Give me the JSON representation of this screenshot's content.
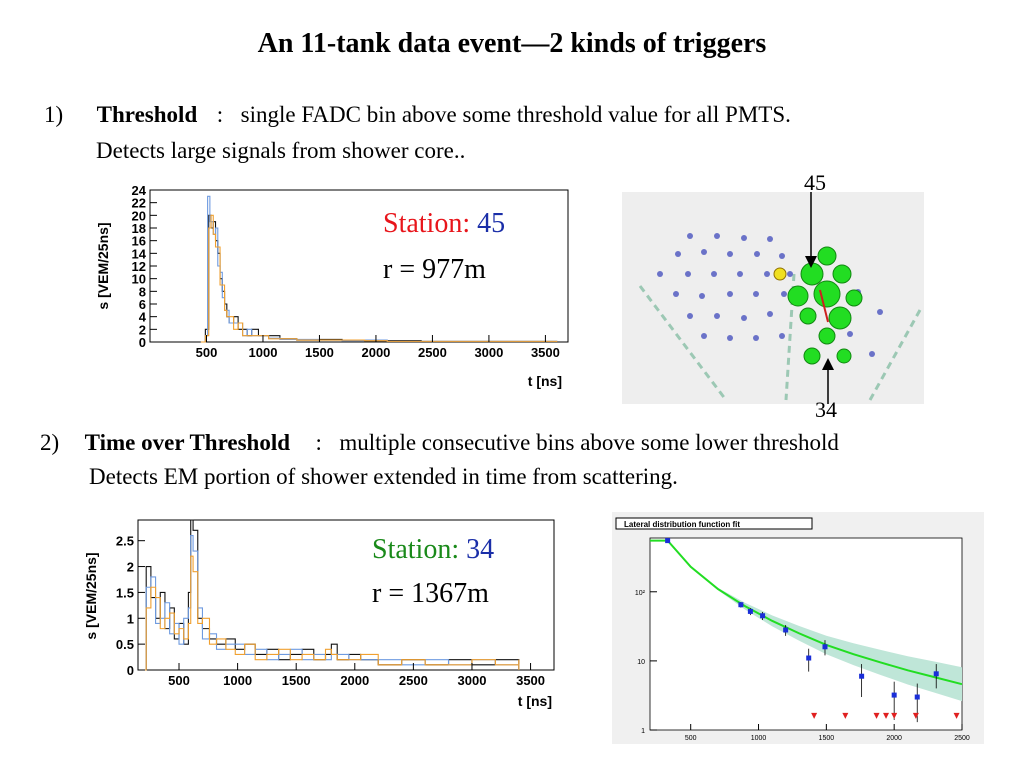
{
  "slide": {
    "title": "An 11-tank data event—2 kinds of triggers",
    "item1": {
      "number": "1)",
      "term": "Threshold",
      "sep": ":",
      "text": "single FADC bin above some threshold value for all PMTS.",
      "text2": "Detects large signals from shower core.."
    },
    "item2": {
      "number": "2)",
      "term": "Time over Threshold",
      "sep": ":",
      "text": "multiple consecutive bins above some lower threshold",
      "text2": "Detects EM portion of shower extended in time from scattering."
    },
    "station_45": {
      "station_word": "Station:",
      "station_num": "45",
      "distance": "r = 977m"
    },
    "station_34": {
      "station_word": "Station:",
      "station_num": "34",
      "distance": "r = 1367m"
    },
    "map_label_top": "45",
    "map_label_bottom": "34"
  },
  "colors": {
    "station45_word": "#e8151b",
    "station34_word": "#1a8a1a",
    "station_num": "#1a2ea8",
    "trace_black": "#111111",
    "trace_blue": "#6f9be0",
    "trace_orange": "#f0a030",
    "map_bg": "#eeeeee",
    "map_green": "#22dd22",
    "map_dot": "#6a72c8",
    "map_dashed": "#9cc8b4",
    "ldf_curve": "#22dd22",
    "ldf_band": "#bfe6d8",
    "ldf_point": "#1a2ed8",
    "ldf_triangle": "#e02020"
  },
  "chart_data": [
    {
      "type": "line",
      "ylabel": "s [VEM/25ns]",
      "xlabel": "t [ns]",
      "xlim": [
        0,
        3700
      ],
      "ylim": [
        0,
        24
      ],
      "xticks": [
        "500",
        "1000",
        "1500",
        "2000",
        "2500",
        "3000",
        "3500"
      ],
      "xtick_values": [
        500,
        1000,
        1500,
        2000,
        2500,
        3000,
        3500
      ],
      "yticks": [
        "0",
        "2",
        "4",
        "6",
        "8",
        "10",
        "12",
        "14",
        "16",
        "18",
        "20",
        "22",
        "24"
      ],
      "ytick_values": [
        0,
        2,
        4,
        6,
        8,
        10,
        12,
        14,
        16,
        18,
        20,
        22,
        24
      ],
      "series": [
        {
          "color": "#111111",
          "x": [
            450,
            490,
            520,
            540,
            560,
            580,
            600,
            620,
            640,
            660,
            680,
            700,
            740,
            780,
            820,
            860,
            900,
            960,
            1050,
            1150,
            1300,
            1500,
            1700,
            1900,
            2100,
            2400,
            2700,
            3000,
            3300,
            3600
          ],
          "y": [
            0,
            2,
            20,
            18,
            19,
            16,
            14,
            10,
            8,
            6,
            4,
            3,
            4,
            2,
            2,
            1,
            2,
            1,
            1,
            0.5,
            0.3,
            0.4,
            0.3,
            0.2,
            0.2,
            0.1,
            0.1,
            0.1,
            0.1,
            0
          ]
        },
        {
          "color": "#6f9be0",
          "x": [
            450,
            490,
            510,
            530,
            560,
            580,
            600,
            620,
            640,
            660,
            680,
            700,
            740,
            780,
            820,
            860,
            900,
            960,
            1050,
            1150,
            1300,
            1500,
            1700,
            1900,
            2100,
            2400,
            2700,
            3000,
            3300,
            3600
          ],
          "y": [
            0,
            1,
            23,
            19,
            17,
            18,
            12,
            11,
            7,
            5,
            5,
            3,
            3,
            3,
            1,
            2,
            1,
            1,
            0.6,
            0.4,
            0.4,
            0.3,
            0.2,
            0.3,
            0.1,
            0.1,
            0.1,
            0.1,
            0.1,
            0
          ]
        },
        {
          "color": "#f0a030",
          "x": [
            450,
            490,
            520,
            540,
            560,
            580,
            600,
            620,
            640,
            660,
            680,
            700,
            740,
            780,
            820,
            860,
            900,
            960,
            1050,
            1150,
            1300,
            1500,
            1700,
            1900,
            2100,
            2400,
            2700,
            3000,
            3300,
            3600
          ],
          "y": [
            0,
            1,
            18,
            20,
            17,
            15,
            15,
            9,
            9,
            5,
            4,
            4,
            2,
            3,
            1,
            1,
            1,
            1,
            0.5,
            0.5,
            0.3,
            0.3,
            0.3,
            0.2,
            0.1,
            0.1,
            0.1,
            0.1,
            0.1,
            0
          ]
        }
      ]
    },
    {
      "type": "line",
      "ylabel": "s [VEM/25ns]",
      "xlabel": "t [ns]",
      "xlim": [
        150,
        3700
      ],
      "ylim": [
        0,
        2.9
      ],
      "xticks": [
        "500",
        "1000",
        "1500",
        "2000",
        "2500",
        "3000",
        "3500"
      ],
      "xtick_values": [
        500,
        1000,
        1500,
        2000,
        2500,
        3000,
        3500
      ],
      "yticks": [
        "0",
        "0.5",
        "1",
        "1.5",
        "2",
        "2.5"
      ],
      "ytick_values": [
        0,
        0.5,
        1,
        1.5,
        2,
        2.5
      ],
      "series": [
        {
          "color": "#111111",
          "x": [
            180,
            220,
            260,
            300,
            340,
            380,
            420,
            460,
            500,
            540,
            580,
            600,
            620,
            660,
            700,
            760,
            820,
            900,
            980,
            1060,
            1150,
            1250,
            1350,
            1450,
            1550,
            1650,
            1750,
            1800,
            1850,
            1950,
            2050,
            2200,
            2400,
            2600,
            2800,
            3000,
            3200,
            3400
          ],
          "y": [
            0,
            2.0,
            1.4,
            1.0,
            1.5,
            0.8,
            1.2,
            0.6,
            0.9,
            0.5,
            1.5,
            2.9,
            2.7,
            1.0,
            0.8,
            0.6,
            0.5,
            0.6,
            0.4,
            0.5,
            0.3,
            0.4,
            0.2,
            0.3,
            0.4,
            0.2,
            0.3,
            0.5,
            0.2,
            0.3,
            0.2,
            0.1,
            0.2,
            0.1,
            0.2,
            0.1,
            0.2,
            0.1
          ]
        },
        {
          "color": "#6f9be0",
          "x": [
            180,
            220,
            260,
            300,
            340,
            380,
            420,
            460,
            500,
            540,
            580,
            600,
            620,
            660,
            700,
            760,
            820,
            900,
            980,
            1060,
            1150,
            1250,
            1350,
            1450,
            1550,
            1650,
            1750,
            1800,
            1850,
            1950,
            2050,
            2200,
            2400,
            2600,
            2800,
            3000,
            3200,
            3400
          ],
          "y": [
            0,
            1.6,
            1.8,
            0.9,
            1.0,
            1.3,
            0.7,
            0.9,
            0.5,
            1.0,
            1.2,
            2.6,
            2.3,
            1.2,
            0.6,
            0.7,
            0.4,
            0.5,
            0.5,
            0.3,
            0.4,
            0.2,
            0.3,
            0.4,
            0.2,
            0.3,
            0.2,
            0.3,
            0.3,
            0.2,
            0.2,
            0.2,
            0.1,
            0.2,
            0.1,
            0.2,
            0.1,
            0.1
          ]
        },
        {
          "color": "#f0a030",
          "x": [
            180,
            220,
            260,
            300,
            340,
            380,
            420,
            460,
            500,
            540,
            580,
            600,
            620,
            660,
            700,
            760,
            820,
            900,
            980,
            1060,
            1150,
            1250,
            1350,
            1450,
            1550,
            1650,
            1750,
            1800,
            1850,
            1950,
            2050,
            2200,
            2400,
            2600,
            2800,
            3000,
            3200,
            3400
          ],
          "y": [
            0,
            1.2,
            1.6,
            1.4,
            0.8,
            1.0,
            1.1,
            0.7,
            0.8,
            0.6,
            0.9,
            2.2,
            1.9,
            0.9,
            1.0,
            0.5,
            0.6,
            0.4,
            0.3,
            0.5,
            0.2,
            0.3,
            0.4,
            0.2,
            0.3,
            0.2,
            0.4,
            0.3,
            0.2,
            0.2,
            0.3,
            0.1,
            0.2,
            0.1,
            0.1,
            0.2,
            0.1,
            0.2
          ]
        }
      ]
    },
    {
      "type": "scatter",
      "title": "Lateral distribution function fit",
      "xlim": [
        200,
        2500
      ],
      "ylim": [
        1,
        600
      ],
      "ylog": true,
      "xticks": [
        "500",
        "1000",
        "1500",
        "2000",
        "2500"
      ],
      "xtick_values": [
        500,
        1000,
        1500,
        2000,
        2500
      ],
      "yticks": [
        "1",
        "10",
        "10²"
      ],
      "ytick_values": [
        1,
        10,
        100
      ],
      "points": [
        {
          "x": 330,
          "y": 550,
          "err": 0
        },
        {
          "x": 870,
          "y": 65,
          "err": 6
        },
        {
          "x": 940,
          "y": 52,
          "err": 6
        },
        {
          "x": 1030,
          "y": 45,
          "err": 6
        },
        {
          "x": 1200,
          "y": 28,
          "err": 5
        },
        {
          "x": 1370,
          "y": 11,
          "err": 4
        },
        {
          "x": 1490,
          "y": 16,
          "err": 4
        },
        {
          "x": 1760,
          "y": 6,
          "err": 3
        },
        {
          "x": 2000,
          "y": 3.2,
          "err": 1.8
        },
        {
          "x": 2170,
          "y": 3.0,
          "err": 1.7
        },
        {
          "x": 2310,
          "y": 6.5,
          "err": 2.5
        }
      ],
      "upper_limits": {
        "x": [
          1410,
          1640,
          1870,
          1940,
          2000,
          2160,
          2460
        ],
        "y": [
          1.6,
          1.6,
          1.6,
          1.6,
          1.6,
          1.6,
          1.6
        ]
      },
      "fit_curve": {
        "x": [
          200,
          330,
          500,
          700,
          900,
          1100,
          1300,
          1500,
          1700,
          1900,
          2100,
          2300,
          2500
        ],
        "y": [
          550,
          550,
          230,
          110,
          62,
          38,
          25,
          17,
          12.5,
          9.5,
          7.3,
          5.8,
          4.6
        ]
      }
    }
  ]
}
